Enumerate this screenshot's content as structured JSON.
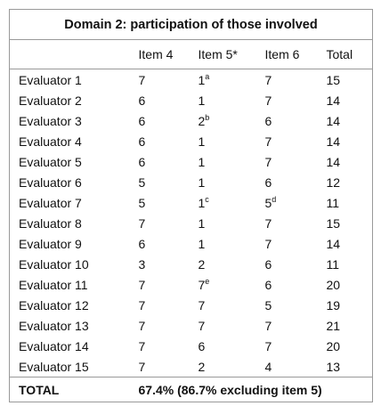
{
  "table": {
    "title": "Domain 2: participation of those involved",
    "header": [
      "",
      "Item 4",
      "Item 5*",
      "Item 6",
      "Total"
    ],
    "rows": [
      [
        "Evaluator 1",
        "7",
        {
          "text": "1",
          "sup": "a"
        },
        "7",
        "15"
      ],
      [
        "Evaluator 2",
        "6",
        "1",
        "7",
        "14"
      ],
      [
        "Evaluator 3",
        "6",
        {
          "text": "2",
          "sup": "b"
        },
        "6",
        "14"
      ],
      [
        "Evaluator 4",
        "6",
        "1",
        "7",
        "14"
      ],
      [
        "Evaluator 5",
        "6",
        "1",
        "7",
        "14"
      ],
      [
        "Evaluator 6",
        "5",
        "1",
        "6",
        "12"
      ],
      [
        "Evaluator 7",
        "5",
        {
          "text": "1",
          "sup": "c"
        },
        {
          "text": "5",
          "sup": "d"
        },
        "11"
      ],
      [
        "Evaluator 8",
        "7",
        "1",
        "7",
        "15"
      ],
      [
        "Evaluator 9",
        "6",
        "1",
        "7",
        "14"
      ],
      [
        "Evaluator 10",
        "3",
        "2",
        "6",
        "11"
      ],
      [
        "Evaluator 11",
        "7",
        {
          "text": "7",
          "sup": "e"
        },
        "6",
        "20"
      ],
      [
        "Evaluator 12",
        "7",
        "7",
        "5",
        "19"
      ],
      [
        "Evaluator 13",
        "7",
        "7",
        "7",
        "21"
      ],
      [
        "Evaluator 14",
        "7",
        "6",
        "7",
        "20"
      ],
      [
        "Evaluator 15",
        "7",
        "2",
        "4",
        "13"
      ]
    ],
    "total": {
      "label": "TOTAL",
      "value": "67.4% (86.7% excluding item 5)"
    }
  }
}
